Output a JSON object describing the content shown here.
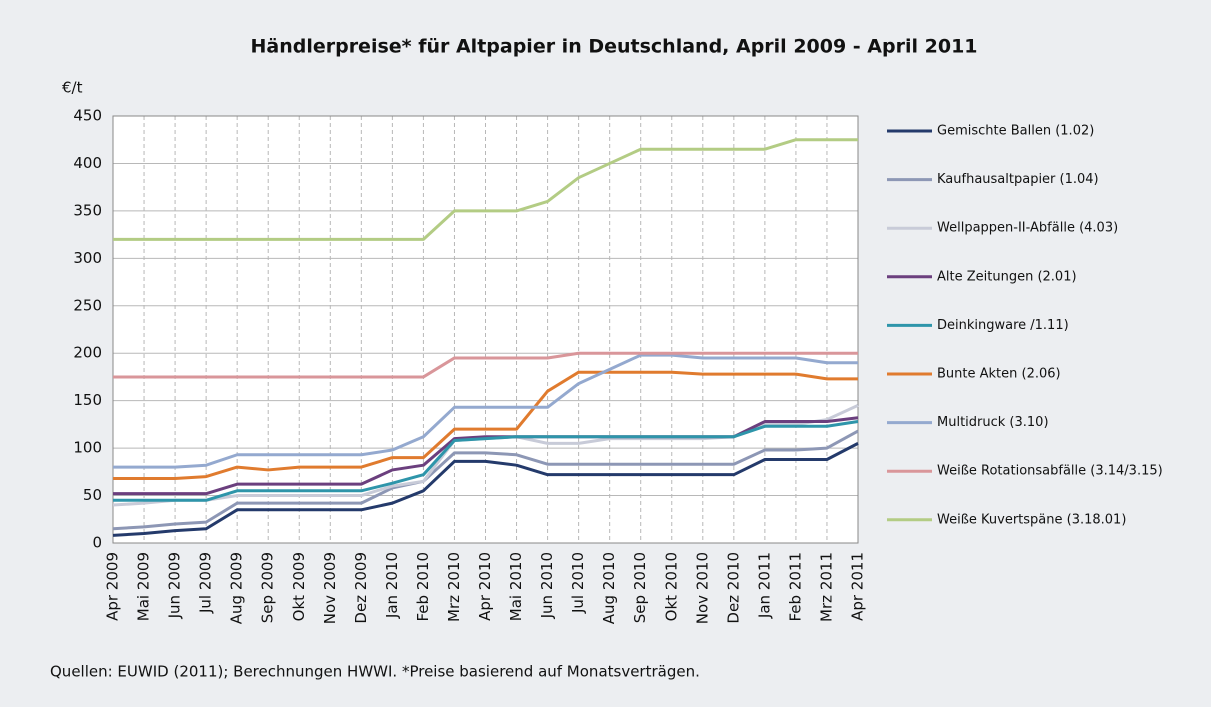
{
  "chart_data": {
    "type": "line",
    "title": "Händlerpreise* für Altpapier in Deutschland, April 2009 - April 2011",
    "y_label": "€/t",
    "note": "Quellen: EUWID (2011); Berechnungen HWWI.  *Preise basierend auf Monatsverträgen.",
    "categories": [
      "Apr 2009",
      "Mai 2009",
      "Jun 2009",
      "Jul 2009",
      "Aug 2009",
      "Sep 2009",
      "Okt 2009",
      "Nov 2009",
      "Dez 2009",
      "Jan 2010",
      "Feb 2010",
      "Mrz 2010",
      "Apr 2010",
      "Mai 2010",
      "Jun 2010",
      "Jul 2010",
      "Aug 2010",
      "Sep 2010",
      "Okt 2010",
      "Nov 2010",
      "Dez 2010",
      "Jan 2011",
      "Feb 2011",
      "Mrz 2011",
      "Apr 2011"
    ],
    "ylim": [
      0,
      450
    ],
    "yticks": [
      0,
      50,
      100,
      150,
      200,
      250,
      300,
      350,
      400,
      450
    ],
    "grid": true,
    "legend": "right",
    "series": [
      {
        "name": "Gemischte Ballen (1.02)",
        "color": "#243a6b",
        "values": [
          8,
          10,
          13,
          15,
          35,
          35,
          35,
          35,
          35,
          42,
          55,
          86,
          86,
          82,
          72,
          72,
          72,
          72,
          72,
          72,
          72,
          88,
          88,
          88,
          105
        ]
      },
      {
        "name": "Kaufhausaltpapier (1.04)",
        "color": "#8d97b5",
        "values": [
          15,
          17,
          20,
          22,
          42,
          42,
          42,
          42,
          42,
          58,
          65,
          95,
          95,
          93,
          83,
          83,
          83,
          83,
          83,
          83,
          83,
          98,
          98,
          100,
          118
        ]
      },
      {
        "name": "Wellpappen-II-Abfälle (4.03)",
        "color": "#c8cbd8",
        "values": [
          40,
          42,
          45,
          45,
          50,
          50,
          50,
          50,
          50,
          60,
          65,
          108,
          110,
          112,
          105,
          105,
          110,
          110,
          110,
          110,
          112,
          125,
          125,
          130,
          145
        ]
      },
      {
        "name": "Alte Zeitungen (2.01)",
        "color": "#6b3f7e",
        "values": [
          52,
          52,
          52,
          52,
          62,
          62,
          62,
          62,
          62,
          77,
          82,
          110,
          112,
          112,
          112,
          112,
          112,
          112,
          112,
          112,
          112,
          128,
          128,
          128,
          132
        ]
      },
      {
        "name": "Deinkingware /1.11)",
        "color": "#2e95aa",
        "values": [
          45,
          45,
          45,
          45,
          55,
          55,
          55,
          55,
          55,
          63,
          72,
          108,
          110,
          112,
          112,
          112,
          112,
          112,
          112,
          112,
          112,
          123,
          123,
          123,
          128
        ]
      },
      {
        "name": "Bunte Akten (2.06)",
        "color": "#e07b2e",
        "values": [
          68,
          68,
          68,
          70,
          80,
          77,
          80,
          80,
          80,
          90,
          90,
          120,
          120,
          120,
          160,
          180,
          180,
          180,
          180,
          178,
          178,
          178,
          178,
          173,
          173
        ]
      },
      {
        "name": "Multidruck (3.10)",
        "color": "#94a9cf",
        "values": [
          80,
          80,
          80,
          82,
          93,
          93,
          93,
          93,
          93,
          98,
          112,
          143,
          143,
          143,
          143,
          168,
          183,
          198,
          198,
          195,
          195,
          195,
          195,
          190,
          190
        ]
      },
      {
        "name": "Weiße Rotationsabfälle (3.14/3.15)",
        "color": "#d9969a",
        "values": [
          175,
          175,
          175,
          175,
          175,
          175,
          175,
          175,
          175,
          175,
          175,
          195,
          195,
          195,
          195,
          200,
          200,
          200,
          200,
          200,
          200,
          200,
          200,
          200,
          200
        ]
      },
      {
        "name": "Weiße Kuvertspäne (3.18.01)",
        "color": "#b3cc84",
        "values": [
          320,
          320,
          320,
          320,
          320,
          320,
          320,
          320,
          320,
          320,
          320,
          350,
          350,
          350,
          360,
          385,
          400,
          415,
          415,
          415,
          415,
          415,
          425,
          425,
          425
        ]
      }
    ]
  }
}
